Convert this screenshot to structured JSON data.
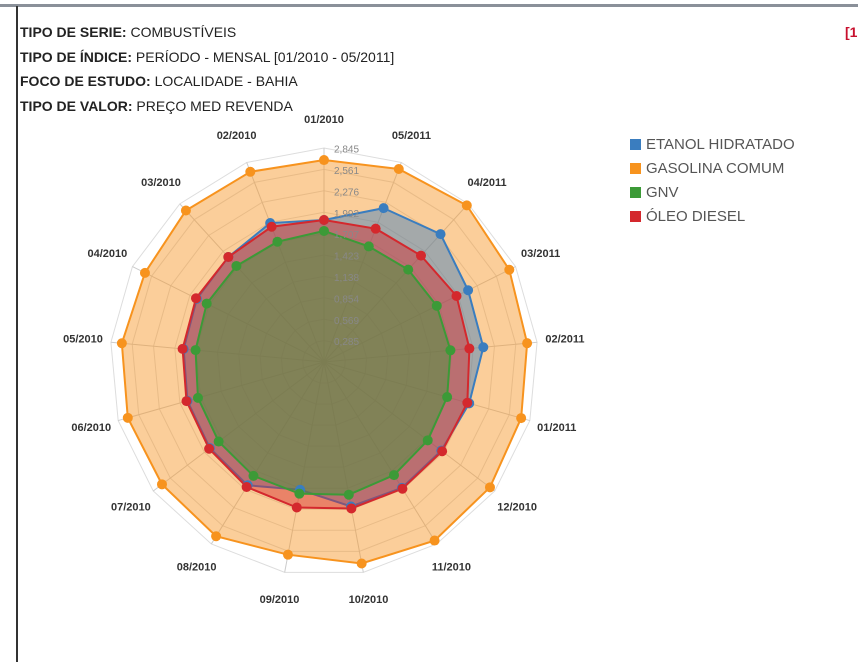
{
  "header": [
    {
      "label": "TIPO DE SERIE:",
      "value": "COMBUSTÍVEIS"
    },
    {
      "label": "TIPO DE ÍNDICE:",
      "value": "PERÍODO - MENSAL [01/2010 - 05/2011]"
    },
    {
      "label": "FOCO DE ESTUDO:",
      "value": "LOCALIDADE - BAHIA"
    },
    {
      "label": "TIPO DE VALOR:",
      "value": "PREÇO MED REVENDA"
    }
  ],
  "corner_text": "[1",
  "chart_data": {
    "type": "radar",
    "categories": [
      "01/2010",
      "05/2011",
      "04/2011",
      "03/2011",
      "02/2011",
      "01/2011",
      "12/2010",
      "11/2010",
      "10/2010",
      "09/2010",
      "08/2010",
      "07/2010",
      "06/2010",
      "05/2010",
      "04/2010",
      "03/2010",
      "02/2010"
    ],
    "ylim": [
      0,
      2.845
    ],
    "yticks": [
      {
        "value": 0.2845,
        "label": "0,285"
      },
      {
        "value": 0.569,
        "label": "0,569"
      },
      {
        "value": 0.8535,
        "label": "0,854"
      },
      {
        "value": 1.138,
        "label": "1,138"
      },
      {
        "value": 1.4225,
        "label": "1,423"
      },
      {
        "value": 1.707,
        "label": "1,707"
      },
      {
        "value": 1.9915,
        "label": "1,992"
      },
      {
        "value": 2.276,
        "label": "2,276"
      },
      {
        "value": 2.5605,
        "label": "2,561"
      },
      {
        "value": 2.845,
        "label": "2,845"
      }
    ],
    "legend": "top-right",
    "series": [
      {
        "name": "GASOLINA COMUM",
        "color": "#f7931e",
        "values": [
          2.685,
          2.752,
          2.818,
          2.752,
          2.712,
          2.725,
          2.765,
          2.792,
          2.725,
          2.606,
          2.725,
          2.699,
          2.712,
          2.699,
          2.659,
          2.725,
          2.712
        ]
      },
      {
        "name": "ETANOL HIDRATADO",
        "color": "#3a7dbf",
        "values": [
          1.888,
          2.194,
          2.3,
          2.14,
          2.127,
          2.007,
          1.954,
          1.968,
          1.954,
          1.728,
          1.928,
          1.901,
          1.888,
          1.874,
          1.888,
          1.888,
          1.981
        ]
      },
      {
        "name": "ÓLEO DIESEL",
        "color": "#d4282d",
        "values": [
          1.888,
          1.901,
          1.914,
          1.968,
          1.941,
          1.981,
          1.968,
          1.981,
          1.981,
          1.968,
          1.954,
          1.914,
          1.901,
          1.888,
          1.901,
          1.888,
          1.928
        ]
      },
      {
        "name": "GNV",
        "color": "#3c9a37",
        "values": [
          1.742,
          1.648,
          1.662,
          1.675,
          1.688,
          1.702,
          1.728,
          1.768,
          1.795,
          1.781,
          1.781,
          1.755,
          1.742,
          1.715,
          1.742,
          1.728,
          1.715
        ]
      }
    ],
    "legend_order": [
      "ETANOL HIDRATADO",
      "GASOLINA COMUM",
      "GNV",
      "ÓLEO DIESEL"
    ]
  }
}
